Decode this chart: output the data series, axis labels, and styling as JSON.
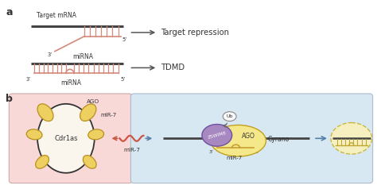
{
  "bg_color": "#ffffff",
  "panel_a_label": "a",
  "panel_b_label": "b",
  "target_repression_text": "Target repression",
  "tdmd_text": "TDMD",
  "target_mrna_text": "Target mRNA",
  "mirna_text": "miRNA",
  "five_prime": "5’",
  "three_prime": "3’",
  "ago_text": "AGO",
  "mir7_text": "miR-7",
  "cdr1as_text": "Cdr1as",
  "zsw_text": "ZSWIM8",
  "ub_text": "Ub",
  "cyrano_text": "Cyrano",
  "salmon_color": "#D4897A",
  "yellow_color": "#EDD060",
  "yellow_light": "#F5E88A",
  "pink_bg": "#F9D8D8",
  "blue_bg": "#D8E8F2",
  "purple_color": "#A888C0",
  "dark_color": "#333333",
  "mrna_color": "#444444",
  "arrow_dark": "#555555",
  "arrow_blue": "#5580AA"
}
